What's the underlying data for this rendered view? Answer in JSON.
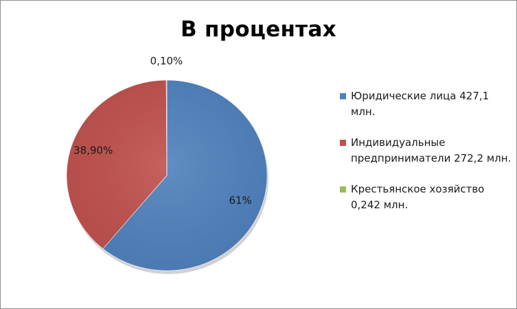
{
  "chart_data": {
    "type": "pie",
    "title": "В процентах",
    "slices": [
      {
        "label": "Юридические лица 427,1 млн.",
        "value": 61,
        "data_label": "61%",
        "color": "#4f81bd"
      },
      {
        "label": "Индивидуальные предприниматели 272,2 млн.",
        "value": 38.9,
        "data_label": "38,90%",
        "color": "#c0504d"
      },
      {
        "label": "Крестьянское хозяйство 0,242 млн.",
        "value": 0.1,
        "data_label": "0,10%",
        "color": "#9bbb59"
      }
    ],
    "legend_position": "right"
  }
}
